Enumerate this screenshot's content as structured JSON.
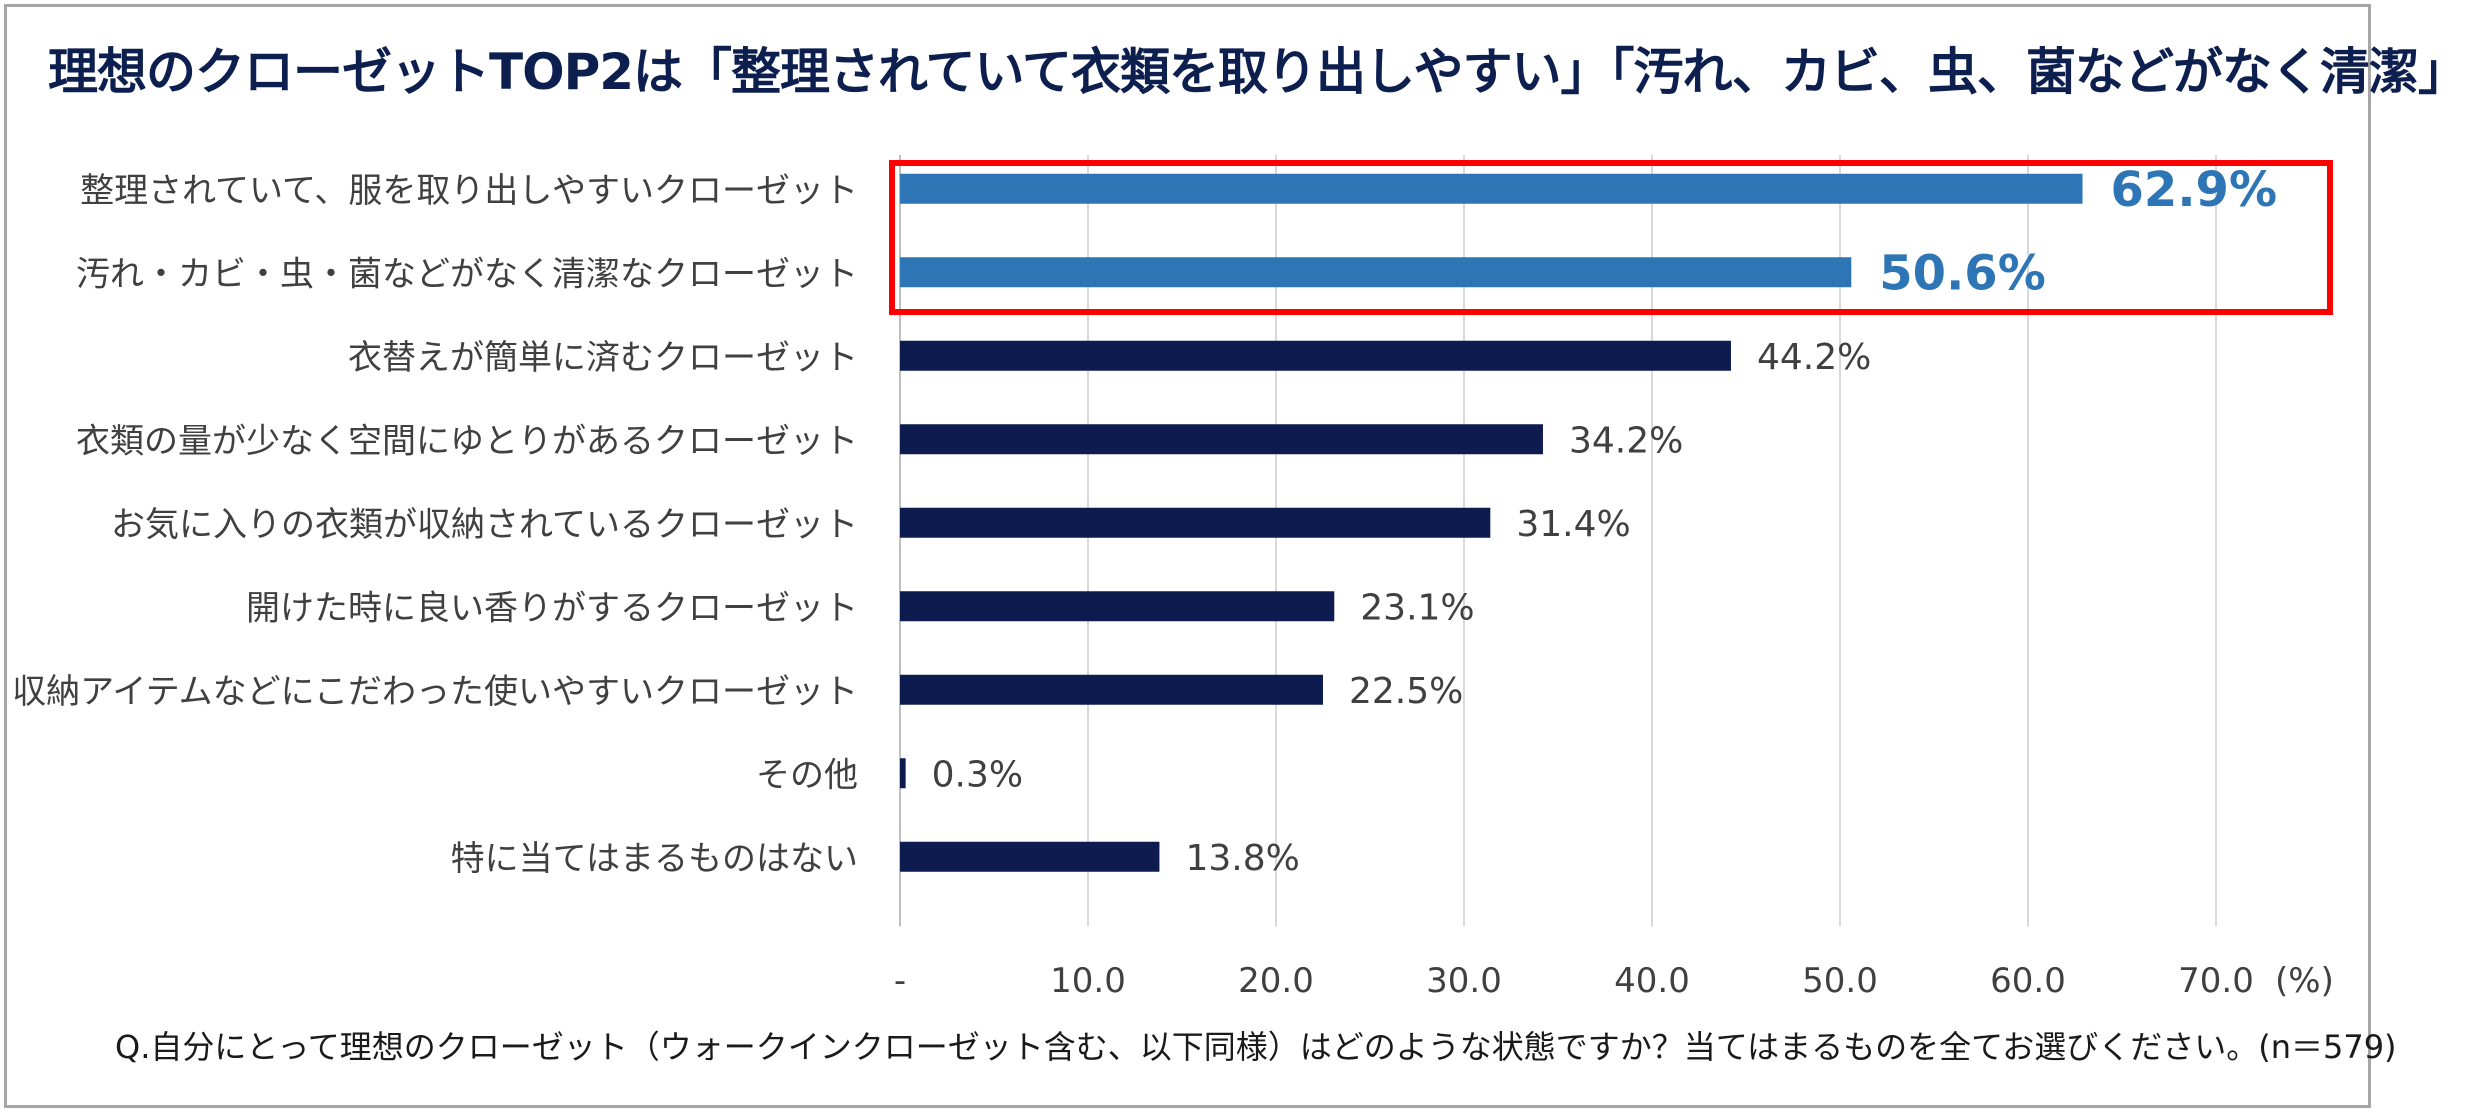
{
  "title": "理想のクローゼットTOP2は「整理されていて衣類を取り出しやすい」「汚れ、カビ、虫、菌などがなく清潔」",
  "footnote": "Q.自分にとって理想のクローゼット（ウォークインクローゼット含む、以下同様）はどのような状態ですか？当てはまるものを全てお選びください。(n＝579)",
  "chart_data": {
    "type": "bar",
    "orientation": "horizontal",
    "categories": [
      "整理されていて、服を取り出しやすいクローゼット",
      "汚れ・カビ・虫・菌などがなく清潔なクローゼット",
      "衣替えが簡単に済むクローゼット",
      "衣類の量が少なく空間にゆとりがあるクローゼット",
      "お気に入りの衣類が収納されているクローゼット",
      "開けた時に良い香りがするクローゼット",
      "収納アイテムなどにこだわった使いやすいクローゼット",
      "その他",
      "特に当てはまるものはない"
    ],
    "values": [
      62.9,
      50.6,
      44.2,
      34.2,
      31.4,
      23.1,
      22.5,
      0.3,
      13.8
    ],
    "value_labels": [
      "62.9%",
      "50.6%",
      "44.2%",
      "34.2%",
      "31.4%",
      "23.1%",
      "22.5%",
      "0.3%",
      "13.8%"
    ],
    "highlighted": [
      true,
      true,
      false,
      false,
      false,
      false,
      false,
      false,
      false
    ],
    "xticks": [
      "-",
      "10.0",
      "20.0",
      "30.0",
      "40.0",
      "50.0",
      "60.0",
      "70.0"
    ],
    "xunit": "(%)",
    "xlim": [
      0,
      70
    ],
    "grid": true,
    "colors": {
      "highlight": "#2e75b6",
      "normal": "#0d1b4f",
      "box": "#ff0000",
      "grid": "#d9d9d9"
    }
  }
}
